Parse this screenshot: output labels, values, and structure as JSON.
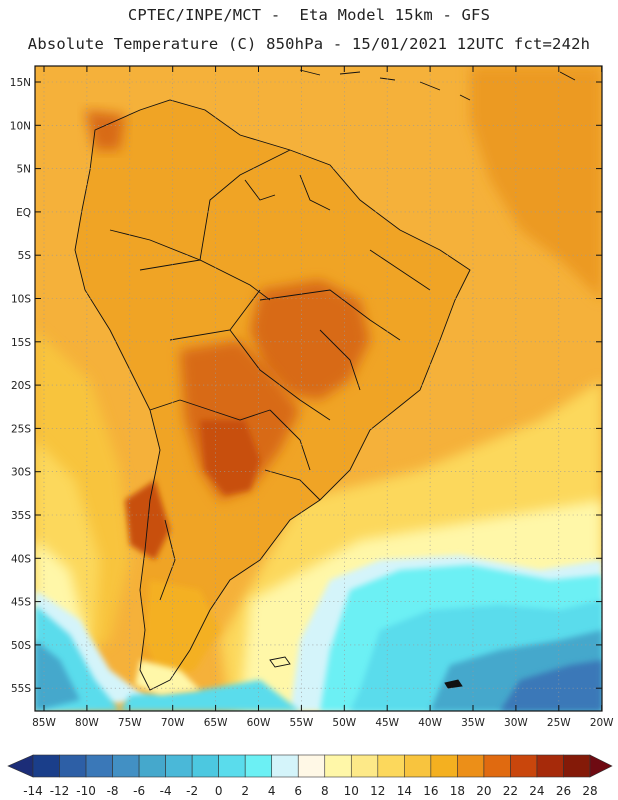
{
  "header": {
    "line1": "CPTEC/INPE/MCT -  Eta Model 15km - GFS",
    "line2": "Absolute Temperature (C) 850hPa - 15/01/2021 12UTC fct=242h"
  },
  "axes": {
    "lat_labels": [
      "15N",
      "10N",
      "5N",
      "EQ",
      "5S",
      "10S",
      "15S",
      "20S",
      "25S",
      "30S",
      "35S",
      "40S",
      "45S",
      "50S",
      "55S"
    ],
    "lon_labels": [
      "85W",
      "80W",
      "75W",
      "70W",
      "65W",
      "60W",
      "55W",
      "50W",
      "45W",
      "40W",
      "35W",
      "30W",
      "25W",
      "20W"
    ]
  },
  "colorbar": {
    "labels": [
      "-14",
      "-12",
      "-10",
      "-8",
      "-6",
      "-4",
      "-2",
      "0",
      "2",
      "4",
      "6",
      "8",
      "10",
      "12",
      "14",
      "16",
      "18",
      "20",
      "22",
      "24",
      "26",
      "28"
    ],
    "colors": [
      "#1a3e8a",
      "#2d5fa6",
      "#3a78b8",
      "#4290c4",
      "#45a8cc",
      "#4ab8d8",
      "#4cc8e0",
      "#5adcec",
      "#6cf0f4",
      "#d4f4fa",
      "#fff8e6",
      "#fff7a8",
      "#fde988",
      "#fcd85c",
      "#f8c43e",
      "#f4b020",
      "#ec8f18",
      "#e06a10",
      "#c9460c",
      "#a62a0a",
      "#841a08"
    ],
    "left_arrow": "#1c2d78",
    "right_arrow": "#6e0a12"
  },
  "palette": {
    "ocean_warm": "#f5b13a",
    "land_base": "#f0a425",
    "hot": "#d86a18",
    "very_hot": "#c8500f",
    "cool_ocean": "#fde98a",
    "cold": "#5adcec",
    "colder": "#45a8cc"
  }
}
